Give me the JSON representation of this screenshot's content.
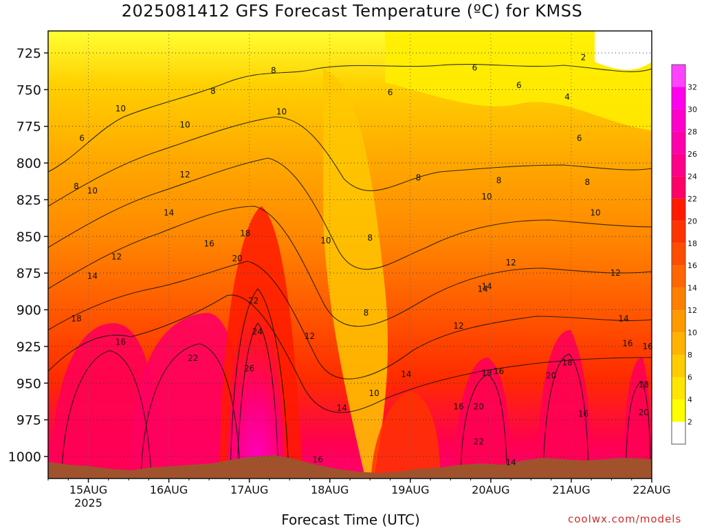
{
  "chart_data": {
    "type": "heatmap",
    "title": "2025081412 GFS Forecast Temperature (ºC) for KMSS",
    "xlabel": "Forecast Time (UTC)",
    "ylabel": "",
    "y_axis": {
      "unit": "hPa",
      "inverted": true,
      "range": [
        1015,
        710
      ],
      "ticks": [
        725,
        750,
        775,
        800,
        825,
        850,
        875,
        900,
        925,
        950,
        975,
        1000
      ]
    },
    "x_axis": {
      "range": [
        "2025-08-14T12",
        "2025-08-22T00"
      ],
      "ticks": [
        "15AUG",
        "16AUG",
        "17AUG",
        "18AUG",
        "19AUG",
        "20AUG",
        "21AUG",
        "22AUG"
      ],
      "year_label": "2025"
    },
    "grid": true,
    "colorbar": {
      "position": "right",
      "levels": [
        2,
        4,
        6,
        8,
        10,
        12,
        14,
        16,
        18,
        20,
        22,
        24,
        26,
        28,
        30,
        32
      ],
      "colors": [
        "#ffffff",
        "#ffff00",
        "#ffe600",
        "#ffcc00",
        "#ffb300",
        "#ff9900",
        "#ff8000",
        "#ff6600",
        "#ff4d00",
        "#ff3300",
        "#ff1a00",
        "#ff0066",
        "#ff0088",
        "#ff00aa",
        "#ff00cc",
        "#ff00ee",
        "#ff44ff"
      ]
    },
    "contour_labels": [
      {
        "value": "2",
        "time": "21AUG+0.15",
        "p": 728
      },
      {
        "value": "4",
        "time": "21AUG-0.05",
        "p": 755
      },
      {
        "value": "6",
        "time": "15AUG-0.08",
        "p": 783
      },
      {
        "value": "6",
        "time": "18AUG+0.75",
        "p": 752
      },
      {
        "value": "6",
        "time": "19AUG+0.8",
        "p": 735
      },
      {
        "value": "6",
        "time": "20AUG+0.35",
        "p": 747
      },
      {
        "value": "6",
        "time": "21AUG+0.1",
        "p": 783
      },
      {
        "value": "8",
        "time": "15AUG-0.15",
        "p": 816
      },
      {
        "value": "8",
        "time": "16AUG+0.55",
        "p": 751
      },
      {
        "value": "8",
        "time": "17AUG+0.3",
        "p": 737
      },
      {
        "value": "8",
        "time": "18AUG+0.5",
        "p": 851
      },
      {
        "value": "8",
        "time": "19AUG+0.1",
        "p": 810
      },
      {
        "value": "8",
        "time": "20AUG+0.1",
        "p": 812
      },
      {
        "value": "8",
        "time": "21AUG+0.2",
        "p": 813
      },
      {
        "value": "8",
        "time": "18AUG+0.45",
        "p": 902
      },
      {
        "value": "10",
        "time": "15AUG+0.05",
        "p": 819
      },
      {
        "value": "10",
        "time": "15AUG+0.4",
        "p": 763
      },
      {
        "value": "10",
        "time": "16AUG+0.2",
        "p": 774
      },
      {
        "value": "10",
        "time": "17AUG+0.4",
        "p": 765
      },
      {
        "value": "10",
        "time": "17AUG+0.95",
        "p": 853
      },
      {
        "value": "10",
        "time": "18AUG+0.55",
        "p": 957
      },
      {
        "value": "10",
        "time": "19AUG+0.95",
        "p": 823
      },
      {
        "value": "10",
        "time": "21AUG+0.3",
        "p": 834
      },
      {
        "value": "12",
        "time": "15AUG+0.35",
        "p": 864
      },
      {
        "value": "12",
        "time": "16AUG+0.2",
        "p": 808
      },
      {
        "value": "12",
        "time": "17AUG+0.75",
        "p": 918
      },
      {
        "value": "12",
        "time": "19AUG+0.6",
        "p": 911
      },
      {
        "value": "12",
        "time": "20AUG+0.25",
        "p": 868
      },
      {
        "value": "12",
        "time": "21AUG+0.55",
        "p": 875
      },
      {
        "value": "14",
        "time": "15AUG+0.05",
        "p": 877
      },
      {
        "value": "14",
        "time": "16AUG+0.0",
        "p": 834
      },
      {
        "value": "14",
        "time": "18AUG+0.15",
        "p": 967
      },
      {
        "value": "14",
        "time": "18AUG+0.95",
        "p": 944
      },
      {
        "value": "14",
        "time": "19AUG+0.95",
        "p": 884
      },
      {
        "value": "14",
        "time": "20AUG-0.1",
        "p": 886
      },
      {
        "value": "14",
        "time": "20AUG+0.25",
        "p": 1004
      },
      {
        "value": "14",
        "time": "21AUG+0.65",
        "p": 906
      },
      {
        "value": "16",
        "time": "15AUG+0.4",
        "p": 922
      },
      {
        "value": "16",
        "time": "16AUG+0.5",
        "p": 855
      },
      {
        "value": "16",
        "time": "18AUG-0.15",
        "p": 1002
      },
      {
        "value": "16",
        "time": "19AUG+0.6",
        "p": 966
      },
      {
        "value": "16",
        "time": "20AUG+0.1",
        "p": 942
      },
      {
        "value": "16",
        "time": "21AUG+0.15",
        "p": 971
      },
      {
        "value": "16",
        "time": "21AUG+0.7",
        "p": 923
      },
      {
        "value": "16",
        "time": "21AUG+0.95",
        "p": 925
      },
      {
        "value": "18",
        "time": "15AUG-0.15",
        "p": 906
      },
      {
        "value": "18",
        "time": "17AUG-0.05",
        "p": 848
      },
      {
        "value": "18",
        "time": "19AUG+0.95",
        "p": 943
      },
      {
        "value": "18",
        "time": "20AUG+0.95",
        "p": 936
      },
      {
        "value": "18",
        "time": "22AUG-0.1",
        "p": 951
      },
      {
        "value": "20",
        "time": "17AUG-0.15",
        "p": 865
      },
      {
        "value": "20",
        "time": "19AUG+0.85",
        "p": 966
      },
      {
        "value": "20",
        "time": "20AUG+0.75",
        "p": 945
      },
      {
        "value": "20",
        "time": "22AUG-0.1",
        "p": 970
      },
      {
        "value": "22",
        "time": "16AUG+0.3",
        "p": 933
      },
      {
        "value": "22",
        "time": "17AUG+0.05",
        "p": 894
      },
      {
        "value": "22",
        "time": "19AUG+0.85",
        "p": 990
      },
      {
        "value": "24",
        "time": "17AUG+0.1",
        "p": 915
      },
      {
        "value": "26",
        "time": "17AUG+0.0",
        "p": 940
      }
    ],
    "terrain": "surface shown in brown below ~1005 hPa"
  },
  "branding": {
    "credit": "coolwx.com/models"
  }
}
